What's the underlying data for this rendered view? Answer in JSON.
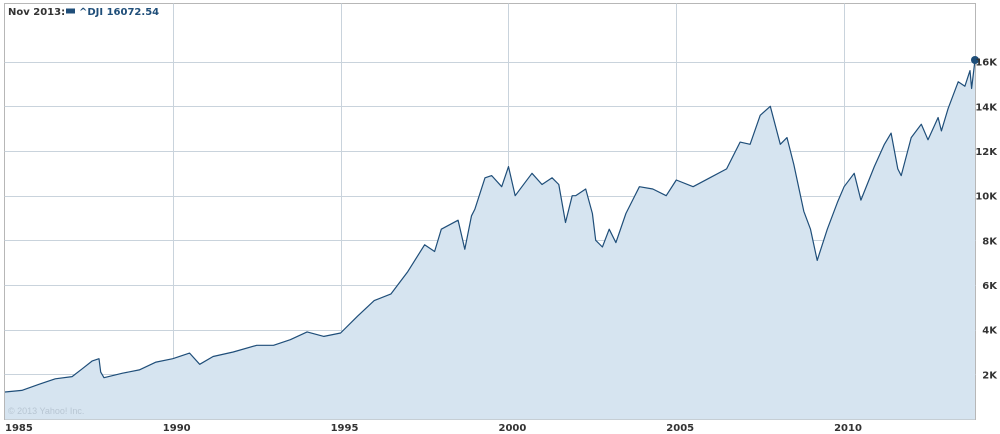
{
  "legend": {
    "date": "Nov 2013:",
    "series_label": "^DJI 16072.54",
    "swatch_color": "#1f4e79"
  },
  "credit": "© 2013 Yahoo! Inc.",
  "colors": {
    "line": "#1f4e79",
    "fill": "#d6e4f0",
    "grid": "#c9d3dc",
    "frame": "#b7b7b7"
  },
  "chart_data": {
    "type": "area",
    "title": "",
    "xlabel": "",
    "ylabel": "",
    "xlim": [
      1985.0,
      2013.9
    ],
    "ylim": [
      0,
      18000
    ],
    "grid": true,
    "legend_position": "top-left",
    "x_ticks": [
      {
        "value": 1985,
        "label": "1985"
      },
      {
        "value": 1990,
        "label": "1990"
      },
      {
        "value": 1995,
        "label": "1995"
      },
      {
        "value": 2000,
        "label": "2000"
      },
      {
        "value": 2005,
        "label": "2005"
      },
      {
        "value": 2010,
        "label": "2010"
      }
    ],
    "y_ticks": [
      {
        "value": 2000,
        "label": "2K"
      },
      {
        "value": 4000,
        "label": "4K"
      },
      {
        "value": 6000,
        "label": "6K"
      },
      {
        "value": 8000,
        "label": "8K"
      },
      {
        "value": 10000,
        "label": "10K"
      },
      {
        "value": 12000,
        "label": "12K"
      },
      {
        "value": 14000,
        "label": "14K"
      },
      {
        "value": 16000,
        "label": "16K"
      }
    ],
    "series": [
      {
        "name": "^DJI",
        "last_value": 16072.54,
        "points": [
          [
            1985.0,
            1210
          ],
          [
            1985.5,
            1280
          ],
          [
            1986.0,
            1550
          ],
          [
            1986.5,
            1800
          ],
          [
            1987.0,
            1900
          ],
          [
            1987.3,
            2250
          ],
          [
            1987.6,
            2600
          ],
          [
            1987.8,
            2700
          ],
          [
            1987.85,
            2100
          ],
          [
            1987.95,
            1850
          ],
          [
            1988.5,
            2050
          ],
          [
            1989.0,
            2200
          ],
          [
            1989.5,
            2550
          ],
          [
            1990.0,
            2700
          ],
          [
            1990.5,
            2950
          ],
          [
            1990.8,
            2450
          ],
          [
            1991.2,
            2800
          ],
          [
            1991.8,
            3000
          ],
          [
            1992.5,
            3300
          ],
          [
            1993.0,
            3300
          ],
          [
            1993.5,
            3550
          ],
          [
            1994.0,
            3900
          ],
          [
            1994.5,
            3700
          ],
          [
            1995.0,
            3850
          ],
          [
            1995.5,
            4600
          ],
          [
            1996.0,
            5300
          ],
          [
            1996.5,
            5600
          ],
          [
            1997.0,
            6600
          ],
          [
            1997.5,
            7800
          ],
          [
            1997.8,
            7500
          ],
          [
            1998.0,
            8500
          ],
          [
            1998.5,
            8900
          ],
          [
            1998.7,
            7600
          ],
          [
            1998.9,
            9100
          ],
          [
            1999.0,
            9400
          ],
          [
            1999.3,
            10800
          ],
          [
            1999.5,
            10900
          ],
          [
            1999.8,
            10400
          ],
          [
            2000.0,
            11300
          ],
          [
            2000.2,
            10000
          ],
          [
            2000.5,
            10600
          ],
          [
            2000.7,
            11000
          ],
          [
            2001.0,
            10500
          ],
          [
            2001.3,
            10800
          ],
          [
            2001.5,
            10500
          ],
          [
            2001.7,
            8800
          ],
          [
            2001.9,
            10000
          ],
          [
            2002.0,
            10000
          ],
          [
            2002.3,
            10300
          ],
          [
            2002.5,
            9200
          ],
          [
            2002.6,
            8000
          ],
          [
            2002.8,
            7700
          ],
          [
            2003.0,
            8500
          ],
          [
            2003.2,
            7900
          ],
          [
            2003.5,
            9200
          ],
          [
            2003.9,
            10400
          ],
          [
            2004.3,
            10300
          ],
          [
            2004.7,
            10000
          ],
          [
            2005.0,
            10700
          ],
          [
            2005.5,
            10400
          ],
          [
            2006.0,
            10800
          ],
          [
            2006.5,
            11200
          ],
          [
            2006.9,
            12400
          ],
          [
            2007.2,
            12300
          ],
          [
            2007.5,
            13600
          ],
          [
            2007.8,
            14000
          ],
          [
            2008.1,
            12300
          ],
          [
            2008.3,
            12600
          ],
          [
            2008.5,
            11400
          ],
          [
            2008.8,
            9300
          ],
          [
            2009.0,
            8500
          ],
          [
            2009.2,
            7100
          ],
          [
            2009.5,
            8500
          ],
          [
            2009.8,
            9700
          ],
          [
            2010.0,
            10400
          ],
          [
            2010.3,
            11000
          ],
          [
            2010.5,
            9800
          ],
          [
            2010.9,
            11300
          ],
          [
            2011.2,
            12300
          ],
          [
            2011.4,
            12800
          ],
          [
            2011.6,
            11200
          ],
          [
            2011.7,
            10900
          ],
          [
            2012.0,
            12600
          ],
          [
            2012.3,
            13200
          ],
          [
            2012.5,
            12500
          ],
          [
            2012.8,
            13500
          ],
          [
            2012.9,
            12900
          ],
          [
            2013.1,
            13900
          ],
          [
            2013.4,
            15100
          ],
          [
            2013.6,
            14900
          ],
          [
            2013.75,
            15600
          ],
          [
            2013.8,
            14800
          ],
          [
            2013.9,
            16072.54
          ]
        ]
      }
    ]
  }
}
